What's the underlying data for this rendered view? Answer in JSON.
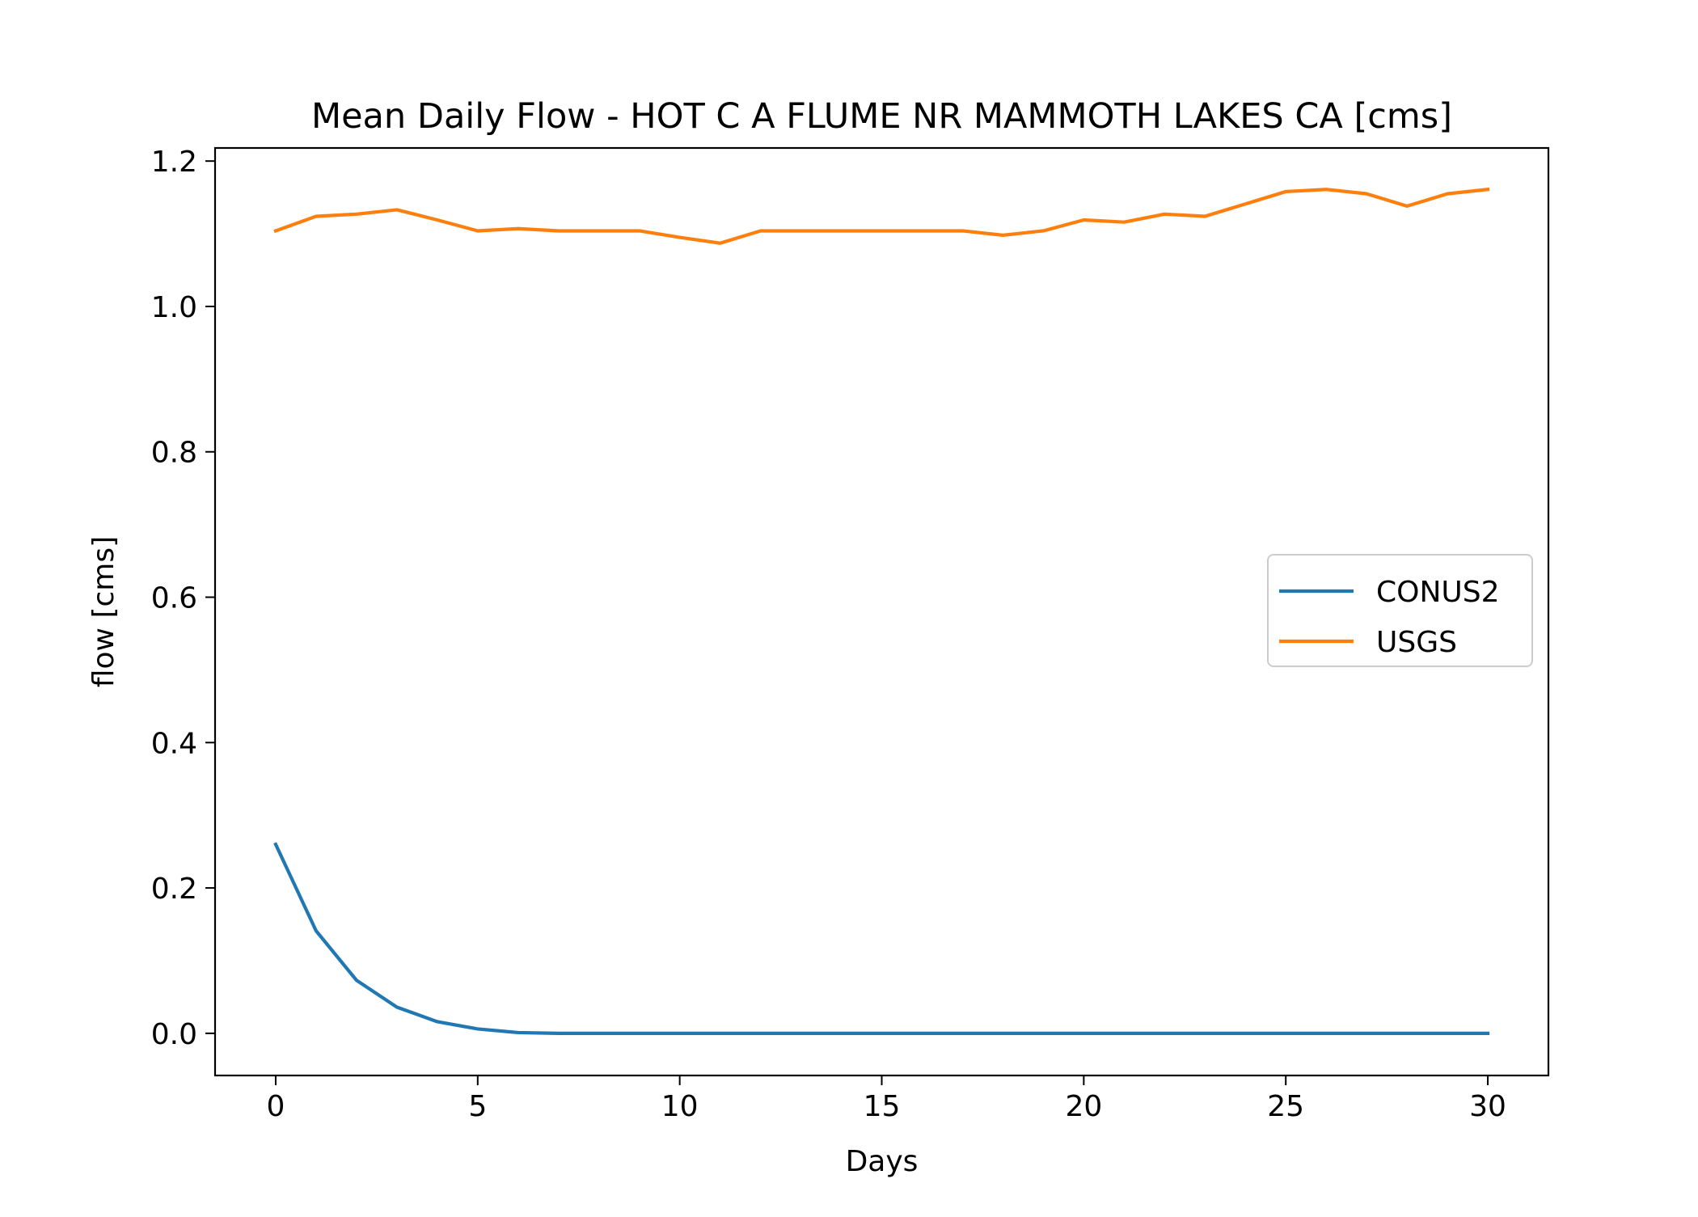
{
  "chart_data": {
    "type": "line",
    "title": "Mean Daily Flow - HOT C A FLUME NR MAMMOTH LAKES CA [cms]",
    "xlabel": "Days",
    "ylabel": "flow [cms]",
    "xlim": [
      -1.5,
      31.5
    ],
    "ylim": [
      -0.058,
      1.218
    ],
    "xticks": [
      0,
      5,
      10,
      15,
      20,
      25,
      30
    ],
    "xtick_labels": [
      "0",
      "5",
      "10",
      "15",
      "20",
      "25",
      "30"
    ],
    "yticks": [
      0.0,
      0.2,
      0.4,
      0.6,
      0.8,
      1.0,
      1.2
    ],
    "ytick_labels": [
      "0.0",
      "0.2",
      "0.4",
      "0.6",
      "0.8",
      "1.0",
      "1.2"
    ],
    "grid": false,
    "legend_position": "center-right",
    "x": [
      0,
      1,
      2,
      3,
      4,
      5,
      6,
      7,
      8,
      9,
      10,
      11,
      12,
      13,
      14,
      15,
      16,
      17,
      18,
      19,
      20,
      21,
      22,
      23,
      24,
      25,
      26,
      27,
      28,
      29,
      30
    ],
    "series": [
      {
        "name": "CONUS2",
        "color": "#1f77b4",
        "values": [
          0.26,
          0.141,
          0.073,
          0.036,
          0.016,
          0.006,
          0.001,
          0,
          0,
          0,
          0,
          0,
          0,
          0,
          0,
          0,
          0,
          0,
          0,
          0,
          0,
          0,
          0,
          0,
          0,
          0,
          0,
          0,
          0,
          0,
          0
        ]
      },
      {
        "name": "USGS",
        "color": "#ff7f0e",
        "values": [
          1.104,
          1.124,
          1.127,
          1.133,
          1.119,
          1.104,
          1.107,
          1.104,
          1.104,
          1.104,
          1.095,
          1.087,
          1.104,
          1.104,
          1.104,
          1.104,
          1.104,
          1.104,
          1.098,
          1.104,
          1.119,
          1.116,
          1.127,
          1.124,
          1.141,
          1.158,
          1.161,
          1.155,
          1.138,
          1.155,
          1.161
        ]
      }
    ]
  }
}
